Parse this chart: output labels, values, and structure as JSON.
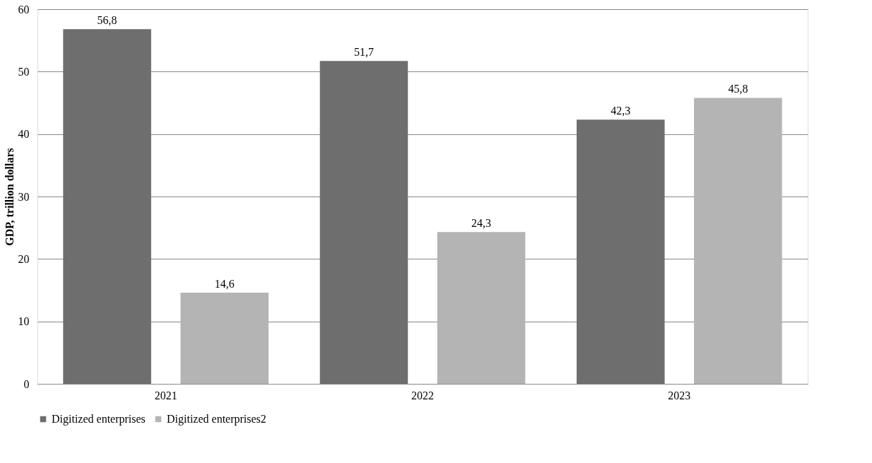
{
  "chart_data": {
    "type": "bar",
    "ylabel": "GDP, trillion dollars",
    "categories": [
      "2021",
      "2022",
      "2023"
    ],
    "series": [
      {
        "name": "Digitized enterprises",
        "color": "#6e6e6e",
        "values": [
          56.8,
          51.7,
          42.3
        ],
        "value_labels": [
          "56,8",
          "51,7",
          "42,3"
        ]
      },
      {
        "name": "Digitized enterprises2",
        "color": "#b4b4b4",
        "values": [
          14.6,
          24.3,
          45.8
        ],
        "value_labels": [
          "14,6",
          "24,3",
          "45,8"
        ]
      }
    ],
    "ylim": [
      0,
      60
    ],
    "yticks": [
      0,
      10,
      20,
      30,
      40,
      50,
      60
    ],
    "grid": "y",
    "legend": "bottom"
  }
}
